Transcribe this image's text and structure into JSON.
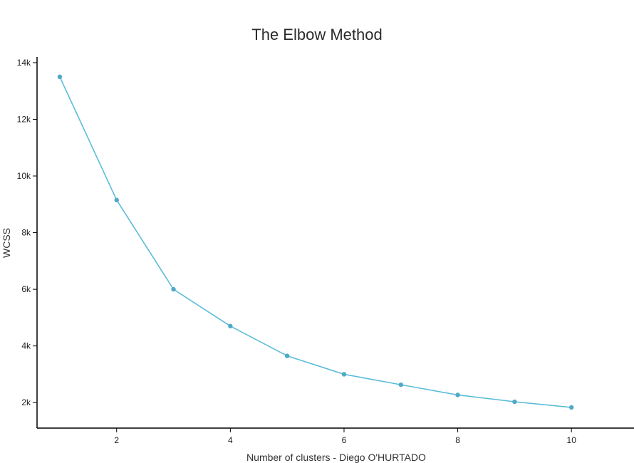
{
  "chart_data": {
    "type": "line",
    "title": "The Elbow Method",
    "xlabel": "Number of clusters - Diego O'HURTADO",
    "ylabel": "WCSS",
    "x": [
      1,
      2,
      3,
      4,
      5,
      6,
      7,
      8,
      9,
      10
    ],
    "series": [
      {
        "values": [
          13500,
          9150,
          6000,
          4700,
          3650,
          3000,
          2630,
          2270,
          2030,
          1830
        ]
      }
    ],
    "xlim": [
      0.6,
      11.1
    ],
    "ylim": [
      1100,
      14200
    ],
    "x_ticks": [
      2,
      4,
      6,
      8,
      10
    ],
    "y_ticks": [
      2000,
      4000,
      6000,
      8000,
      10000,
      12000,
      14000
    ],
    "y_tick_labels": [
      "2k",
      "4k",
      "6k",
      "8k",
      "10k",
      "12k",
      "14k"
    ],
    "grid": false,
    "line_color": "#5bbcd9",
    "marker_color": "#4fa9c6"
  }
}
